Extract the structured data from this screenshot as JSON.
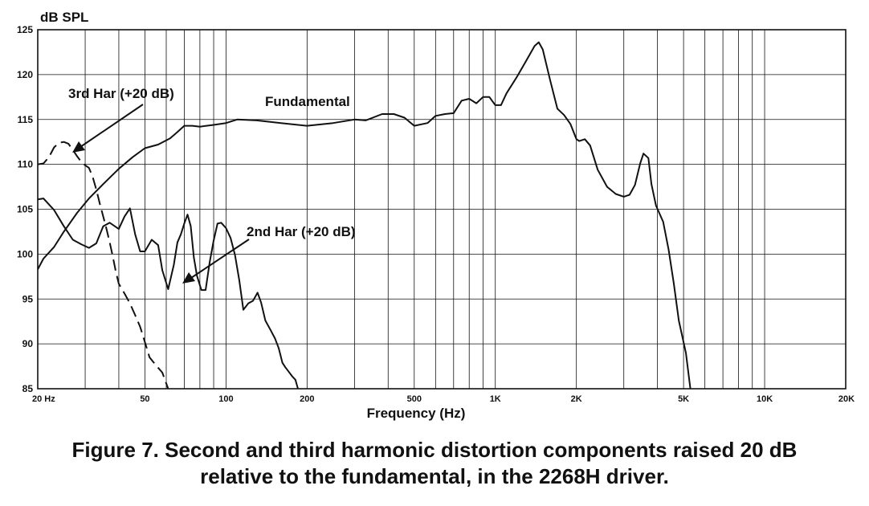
{
  "chart_data": {
    "type": "line",
    "ylabel": "dB SPL",
    "xlabel": "Frequency (Hz)",
    "x_scale": "log",
    "xlim": [
      20,
      20000
    ],
    "ylim": [
      85,
      125
    ],
    "grid": true,
    "y_ticks": [
      {
        "value": 125,
        "label": "125"
      },
      {
        "value": 120,
        "label": "120"
      },
      {
        "value": 115,
        "label": "115"
      },
      {
        "value": 110,
        "label": "110"
      },
      {
        "value": 105,
        "label": "105"
      },
      {
        "value": 100,
        "label": "100"
      },
      {
        "value": 95,
        "label": "95"
      },
      {
        "value": 90,
        "label": "90"
      },
      {
        "value": 85,
        "label": "85"
      }
    ],
    "x_ticks": [
      {
        "value": 20,
        "label": "20  Hz"
      },
      {
        "value": 50,
        "label": "50"
      },
      {
        "value": 100,
        "label": "100"
      },
      {
        "value": 200,
        "label": "200"
      },
      {
        "value": 500,
        "label": "500"
      },
      {
        "value": 1000,
        "label": "1K"
      },
      {
        "value": 2000,
        "label": "2K"
      },
      {
        "value": 5000,
        "label": "5K"
      },
      {
        "value": 10000,
        "label": "10K"
      },
      {
        "value": 20000,
        "label": "20K"
      }
    ],
    "series": [
      {
        "name": "Fundamental",
        "style": "solid",
        "points": [
          [
            20,
            98.3
          ],
          [
            21,
            99.5
          ],
          [
            23,
            100.8
          ],
          [
            25,
            102.5
          ],
          [
            28,
            104.6
          ],
          [
            31,
            106.2
          ],
          [
            35,
            107.8
          ],
          [
            40,
            109.5
          ],
          [
            45,
            110.8
          ],
          [
            50,
            111.8
          ],
          [
            56,
            112.2
          ],
          [
            62,
            112.9
          ],
          [
            66,
            113.6
          ],
          [
            70,
            114.3
          ],
          [
            75,
            114.3
          ],
          [
            80,
            114.2
          ],
          [
            90,
            114.4
          ],
          [
            100,
            114.6
          ],
          [
            110,
            115.0
          ],
          [
            130,
            114.9
          ],
          [
            160,
            114.6
          ],
          [
            200,
            114.3
          ],
          [
            250,
            114.6
          ],
          [
            300,
            115.0
          ],
          [
            330,
            114.9
          ],
          [
            380,
            115.6
          ],
          [
            420,
            115.6
          ],
          [
            460,
            115.2
          ],
          [
            500,
            114.3
          ],
          [
            560,
            114.6
          ],
          [
            600,
            115.4
          ],
          [
            650,
            115.6
          ],
          [
            700,
            115.7
          ],
          [
            750,
            117.1
          ],
          [
            800,
            117.3
          ],
          [
            850,
            116.8
          ],
          [
            900,
            117.5
          ],
          [
            950,
            117.5
          ],
          [
            1000,
            116.6
          ],
          [
            1050,
            116.6
          ],
          [
            1100,
            117.9
          ],
          [
            1200,
            119.7
          ],
          [
            1300,
            121.5
          ],
          [
            1400,
            123.2
          ],
          [
            1450,
            123.6
          ],
          [
            1500,
            122.8
          ],
          [
            1600,
            119.3
          ],
          [
            1700,
            116.2
          ],
          [
            1800,
            115.5
          ],
          [
            1900,
            114.5
          ],
          [
            2000,
            112.8
          ],
          [
            2050,
            112.6
          ],
          [
            2150,
            112.8
          ],
          [
            2250,
            112.1
          ],
          [
            2400,
            109.4
          ],
          [
            2600,
            107.5
          ],
          [
            2800,
            106.7
          ],
          [
            3000,
            106.4
          ],
          [
            3150,
            106.6
          ],
          [
            3300,
            107.7
          ],
          [
            3450,
            110.1
          ],
          [
            3550,
            111.2
          ],
          [
            3700,
            110.7
          ],
          [
            3800,
            107.8
          ],
          [
            3950,
            105.4
          ],
          [
            4200,
            103.6
          ],
          [
            4400,
            100.5
          ],
          [
            4600,
            96.7
          ],
          [
            4800,
            92.6
          ],
          [
            5100,
            89.0
          ],
          [
            5300,
            85
          ]
        ]
      },
      {
        "name": "2nd Har (+20 dB)",
        "style": "solid",
        "points": [
          [
            20,
            106.1
          ],
          [
            21,
            106.2
          ],
          [
            23,
            104.9
          ],
          [
            25,
            103.1
          ],
          [
            27,
            101.6
          ],
          [
            29,
            101.1
          ],
          [
            31,
            100.7
          ],
          [
            33,
            101.2
          ],
          [
            35,
            103.1
          ],
          [
            37,
            103.5
          ],
          [
            40,
            102.8
          ],
          [
            42,
            104.2
          ],
          [
            44,
            105.1
          ],
          [
            46,
            102.2
          ],
          [
            48,
            100.3
          ],
          [
            50,
            100.3
          ],
          [
            53,
            101.6
          ],
          [
            56,
            101.0
          ],
          [
            58,
            98.2
          ],
          [
            61,
            96.1
          ],
          [
            64,
            98.8
          ],
          [
            66,
            101.3
          ],
          [
            68,
            102.2
          ],
          [
            70,
            103.4
          ],
          [
            72,
            104.4
          ],
          [
            74,
            103.1
          ],
          [
            76,
            99.6
          ],
          [
            78,
            97.6
          ],
          [
            81,
            96.0
          ],
          [
            84,
            96.0
          ],
          [
            87,
            99.1
          ],
          [
            90,
            101.5
          ],
          [
            93,
            103.4
          ],
          [
            96,
            103.5
          ],
          [
            100,
            102.9
          ],
          [
            104,
            101.8
          ],
          [
            108,
            99.9
          ],
          [
            112,
            97.1
          ],
          [
            116,
            93.8
          ],
          [
            121,
            94.5
          ],
          [
            126,
            94.8
          ],
          [
            131,
            95.7
          ],
          [
            135,
            94.6
          ],
          [
            140,
            92.6
          ],
          [
            146,
            91.6
          ],
          [
            152,
            90.6
          ],
          [
            157,
            89.5
          ],
          [
            162,
            87.9
          ],
          [
            166,
            87.4
          ],
          [
            171,
            86.9
          ],
          [
            176,
            86.4
          ],
          [
            181,
            86.0
          ],
          [
            185,
            85
          ]
        ]
      },
      {
        "name": "3rd Har (+20 dB)",
        "style": "dashed",
        "points": [
          [
            20,
            110.0
          ],
          [
            21,
            110.1
          ],
          [
            22,
            110.8
          ],
          [
            23,
            111.9
          ],
          [
            24,
            112.4
          ],
          [
            25,
            112.5
          ],
          [
            26,
            112.3
          ],
          [
            27,
            111.6
          ],
          [
            28,
            110.9
          ],
          [
            29,
            110.3
          ],
          [
            30,
            109.9
          ],
          [
            31,
            109.6
          ],
          [
            32,
            108.6
          ],
          [
            33,
            107.2
          ],
          [
            34,
            105.6
          ],
          [
            35,
            104.2
          ],
          [
            36,
            102.8
          ],
          [
            37,
            101.3
          ],
          [
            38,
            99.7
          ],
          [
            39,
            98.0
          ],
          [
            40,
            96.7
          ],
          [
            42,
            95.6
          ],
          [
            44,
            94.5
          ],
          [
            46,
            93.2
          ],
          [
            48,
            91.9
          ],
          [
            50,
            90.2
          ],
          [
            52,
            88.5
          ],
          [
            55,
            87.6
          ],
          [
            58,
            86.8
          ],
          [
            61,
            85
          ]
        ]
      }
    ],
    "annotations": [
      {
        "text": "3rd Har (+20 dB)",
        "points_to": "3rd Har (+20 dB)",
        "at": [
          27,
          110.6
        ]
      },
      {
        "text": "Fundamental",
        "points_to": "Fundamental"
      },
      {
        "text": "2nd Har (+20 dB)",
        "points_to": "2nd Har (+20 dB)",
        "at": [
          73,
          98.5
        ]
      }
    ],
    "caption": "Figure 7. Second and third harmonic distortion components raised 20 dB relative to the fundamental, in the 2268H driver."
  },
  "caption_lines": [
    "Figure 7. Second and third harmonic distortion components raised 20 dB",
    "relative to the fundamental, in the 2268H driver."
  ]
}
